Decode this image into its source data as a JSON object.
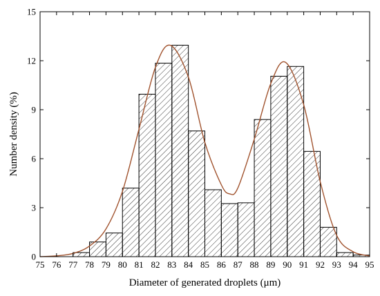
{
  "chart_data": {
    "type": "bar",
    "subtype": "histogram-with-fitted-curve",
    "xlabel": "Diameter of generated droplets (μm)",
    "ylabel": "Number density (%)",
    "xlim": [
      75,
      95
    ],
    "ylim": [
      0,
      15
    ],
    "x_ticks": [
      "75",
      "76",
      "77",
      "78",
      "79",
      "80",
      "81",
      "82",
      "83",
      "84",
      "85",
      "86",
      "87",
      "88",
      "89",
      "90",
      "91",
      "92",
      "93",
      "94",
      "95"
    ],
    "y_ticks": [
      "0",
      "3",
      "6",
      "9",
      "12",
      "15"
    ],
    "bins": [
      {
        "from": 75,
        "to": 76,
        "value": 0.0
      },
      {
        "from": 76,
        "to": 77,
        "value": 0.0
      },
      {
        "from": 77,
        "to": 78,
        "value": 0.25
      },
      {
        "from": 78,
        "to": 79,
        "value": 0.9
      },
      {
        "from": 79,
        "to": 80,
        "value": 1.45
      },
      {
        "from": 80,
        "to": 81,
        "value": 4.2
      },
      {
        "from": 81,
        "to": 82,
        "value": 9.95
      },
      {
        "from": 82,
        "to": 83,
        "value": 11.85
      },
      {
        "from": 83,
        "to": 84,
        "value": 12.95
      },
      {
        "from": 84,
        "to": 85,
        "value": 7.7
      },
      {
        "from": 85,
        "to": 86,
        "value": 4.1
      },
      {
        "from": 86,
        "to": 87,
        "value": 3.25
      },
      {
        "from": 87,
        "to": 88,
        "value": 3.3
      },
      {
        "from": 88,
        "to": 89,
        "value": 8.4
      },
      {
        "from": 89,
        "to": 90,
        "value": 11.05
      },
      {
        "from": 90,
        "to": 91,
        "value": 11.65
      },
      {
        "from": 91,
        "to": 92,
        "value": 6.45
      },
      {
        "from": 92,
        "to": 93,
        "value": 1.8
      },
      {
        "from": 93,
        "to": 94,
        "value": 0.25
      },
      {
        "from": 94,
        "to": 95,
        "value": 0.1
      }
    ],
    "fit_curve": {
      "x": [
        75,
        76,
        77,
        78,
        79,
        80,
        81,
        82,
        82.9,
        84,
        85,
        86,
        86.5,
        87,
        88,
        89,
        89.9,
        91,
        92,
        93,
        94,
        95
      ],
      "y": [
        0.0,
        0.05,
        0.2,
        0.65,
        1.7,
        4.0,
        7.8,
        11.6,
        12.95,
        11.0,
        7.0,
        4.4,
        3.85,
        4.2,
        7.2,
        10.6,
        11.9,
        9.3,
        4.6,
        1.3,
        0.3,
        0.05
      ]
    },
    "colors": {
      "fit_curve": "#a0522d",
      "bars_edge": "#000000",
      "hatch": "#333333"
    },
    "bar_fill": "diagonal-hatch"
  }
}
